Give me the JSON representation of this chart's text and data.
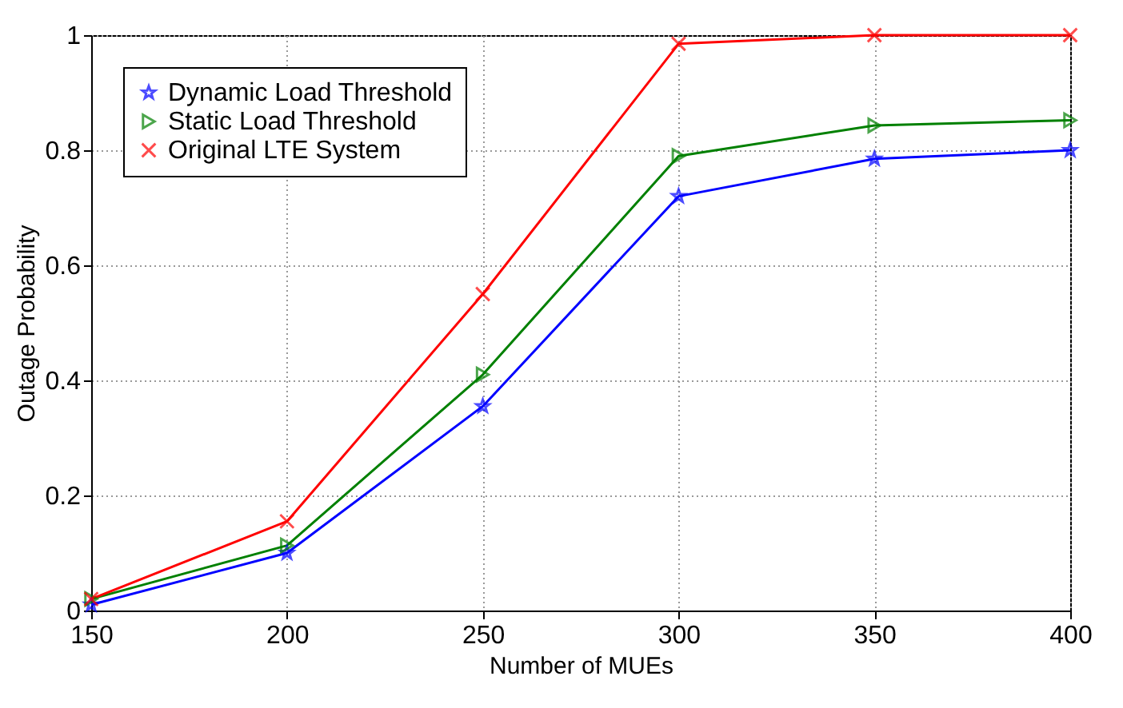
{
  "chart_data": {
    "type": "line",
    "xlabel": "Number of MUEs",
    "ylabel": "Outage Probability",
    "x": [
      150,
      200,
      250,
      300,
      350,
      400
    ],
    "series": [
      {
        "name": "Dynamic Load Threshold",
        "color": "#0000ff",
        "marker": "star",
        "values": [
          0.01,
          0.1,
          0.355,
          0.72,
          0.785,
          0.8
        ]
      },
      {
        "name": "Static Load Threshold",
        "color": "#008000",
        "marker": "triangle",
        "values": [
          0.02,
          0.113,
          0.41,
          0.79,
          0.843,
          0.852
        ]
      },
      {
        "name": "Original LTE System",
        "color": "#ff0000",
        "marker": "cross",
        "values": [
          0.02,
          0.155,
          0.55,
          0.985,
          1.0,
          1.0
        ]
      }
    ],
    "xlim": [
      150,
      400
    ],
    "xticks": [
      150,
      200,
      250,
      300,
      350,
      400
    ],
    "ylim": [
      0,
      1
    ],
    "yticks": [
      0,
      0.2,
      0.4,
      0.6,
      0.8,
      1
    ],
    "grid": true,
    "legend": "top left",
    "line_style": "solid"
  }
}
